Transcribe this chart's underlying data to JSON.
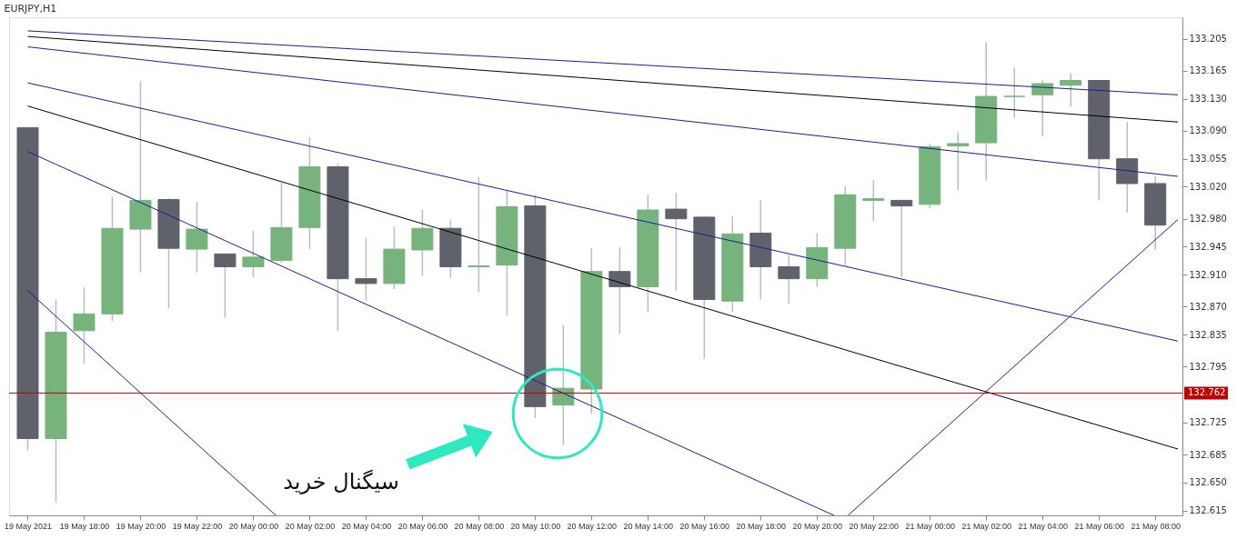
{
  "chart_data": {
    "type": "candlestick",
    "title": "EURJPY,H1",
    "x": [
      "2021-05-19T16:00",
      "2021-05-19T17:00",
      "2021-05-19T18:00",
      "2021-05-19T19:00",
      "2021-05-19T20:00",
      "2021-05-19T21:00",
      "2021-05-19T22:00",
      "2021-05-19T23:00",
      "2021-05-20T00:00",
      "2021-05-20T01:00",
      "2021-05-20T02:00",
      "2021-05-20T03:00",
      "2021-05-20T04:00",
      "2021-05-20T05:00",
      "2021-05-20T06:00",
      "2021-05-20T07:00",
      "2021-05-20T08:00",
      "2021-05-20T09:00",
      "2021-05-20T10:00",
      "2021-05-20T11:00",
      "2021-05-20T12:00",
      "2021-05-20T13:00",
      "2021-05-20T14:00",
      "2021-05-20T15:00",
      "2021-05-20T16:00",
      "2021-05-20T17:00",
      "2021-05-20T18:00",
      "2021-05-20T19:00",
      "2021-05-20T20:00",
      "2021-05-20T21:00",
      "2021-05-20T22:00",
      "2021-05-20T23:00",
      "2021-05-21T00:00",
      "2021-05-21T01:00",
      "2021-05-21T02:00",
      "2021-05-21T03:00",
      "2021-05-21T04:00",
      "2021-05-21T05:00",
      "2021-05-21T06:00",
      "2021-05-21T07:00",
      "2021-05-21T08:00"
    ],
    "ohlc": [
      [
        133.094,
        133.094,
        132.69,
        132.705
      ],
      [
        132.705,
        132.879,
        132.625,
        132.838
      ],
      [
        132.84,
        132.894,
        132.799,
        132.861
      ],
      [
        132.861,
        133.008,
        132.852,
        132.968
      ],
      [
        132.967,
        133.152,
        132.913,
        133.003
      ],
      [
        133.004,
        133.006,
        132.868,
        132.943
      ],
      [
        132.942,
        133.001,
        132.913,
        132.967
      ],
      [
        132.936,
        132.936,
        132.856,
        132.92
      ],
      [
        132.92,
        132.965,
        132.907,
        132.932
      ],
      [
        132.928,
        133.025,
        132.925,
        132.969
      ],
      [
        132.969,
        133.082,
        132.942,
        133.045
      ],
      [
        133.045,
        133.049,
        132.84,
        132.905
      ],
      [
        132.905,
        132.956,
        132.878,
        132.899
      ],
      [
        132.899,
        132.97,
        132.892,
        132.942
      ],
      [
        132.941,
        132.991,
        132.909,
        132.968
      ],
      [
        132.968,
        132.979,
        132.906,
        132.92
      ],
      [
        132.92,
        133.032,
        132.888,
        132.921
      ],
      [
        132.922,
        133.015,
        132.859,
        132.995
      ],
      [
        132.996,
        133.01,
        132.731,
        132.745
      ],
      [
        132.747,
        132.847,
        132.697,
        132.768
      ],
      [
        132.767,
        132.943,
        132.736,
        132.914
      ],
      [
        132.914,
        132.944,
        132.836,
        132.895
      ],
      [
        132.895,
        133.01,
        132.863,
        132.991
      ],
      [
        132.992,
        133.012,
        132.89,
        132.98
      ],
      [
        132.982,
        132.984,
        132.805,
        132.879
      ],
      [
        132.877,
        132.983,
        132.863,
        132.961
      ],
      [
        132.962,
        133.003,
        132.879,
        132.92
      ],
      [
        132.92,
        132.935,
        132.874,
        132.905
      ],
      [
        132.905,
        132.962,
        132.895,
        132.944
      ],
      [
        132.943,
        133.021,
        132.922,
        133.01
      ],
      [
        133.003,
        133.028,
        132.977,
        133.005
      ],
      [
        133.003,
        133.003,
        132.907,
        132.996
      ],
      [
        132.998,
        133.074,
        132.993,
        133.07
      ],
      [
        133.071,
        133.088,
        133.016,
        133.074
      ],
      [
        133.075,
        133.201,
        133.028,
        133.133
      ],
      [
        133.133,
        133.169,
        133.106,
        133.133
      ],
      [
        133.135,
        133.153,
        133.083,
        133.149
      ],
      [
        133.147,
        133.162,
        133.12,
        133.153
      ],
      [
        133.153,
        133.153,
        133.003,
        133.055
      ],
      [
        133.055,
        133.101,
        132.988,
        133.024
      ],
      [
        133.024,
        133.033,
        132.941,
        132.972
      ]
    ],
    "colors": [
      "#5f616b",
      "#77b37d",
      "#77b37d",
      "#77b37d",
      "#77b37d",
      "#5f616b",
      "#77b37d",
      "#5f616b",
      "#77b37d",
      "#77b37d",
      "#77b37d",
      "#5f616b",
      "#5f616b",
      "#77b37d",
      "#77b37d",
      "#5f616b",
      "#77b37d",
      "#77b37d",
      "#5f616b",
      "#77b37d",
      "#77b37d",
      "#5f616b",
      "#77b37d",
      "#5f616b",
      "#5f616b",
      "#77b37d",
      "#5f616b",
      "#5f616b",
      "#77b37d",
      "#77b37d",
      "#77b37d",
      "#5f616b",
      "#77b37d",
      "#77b37d",
      "#77b37d",
      "#77b37d",
      "#77b37d",
      "#77b37d",
      "#5f616b",
      "#5f616b",
      "#5f616b"
    ],
    "series": [
      {
        "type": "line",
        "color": "#1c1c9a",
        "x": [
          "2021-05-19T16:00",
          "2021-05-21T08:48"
        ],
        "values": [
          133.215,
          133.135
        ]
      },
      {
        "type": "line",
        "color": "#000000",
        "x": [
          "2021-05-19T16:00",
          "2021-05-21T08:48"
        ],
        "values": [
          133.208,
          133.101
        ]
      },
      {
        "type": "line",
        "color": "#1c1c9a",
        "x": [
          "2021-05-19T16:00",
          "2021-05-21T08:48"
        ],
        "values": [
          133.195,
          133.033
        ]
      },
      {
        "type": "line",
        "color": "#1c1c9a",
        "x": [
          "2021-05-19T16:00",
          "2021-05-21T08:48"
        ],
        "values": [
          133.15,
          132.827
        ]
      },
      {
        "type": "line",
        "color": "#000000",
        "x": [
          "2021-05-19T16:00",
          "2021-05-21T08:48"
        ],
        "values": [
          133.121,
          132.692
        ]
      },
      {
        "type": "line",
        "color": "#1c1c9a",
        "x": [
          "2021-05-19T16:00",
          "2021-05-20T20:36"
        ],
        "values": [
          133.064,
          132.609
        ]
      },
      {
        "type": "line",
        "color": "#1c1c9a",
        "x": [
          "2021-05-19T16:00",
          "2021-05-20T00:48"
        ],
        "values": [
          132.89,
          132.609
        ]
      },
      {
        "type": "line",
        "color": "#1c1c9a",
        "x": [
          "2021-05-20T21:06",
          "2021-05-21T08:48"
        ],
        "values": [
          132.609,
          132.979
        ]
      }
    ],
    "ref_lines": [
      {
        "axis": "y",
        "value": 132.762,
        "label": "132.762",
        "color": "#c00000"
      }
    ],
    "annotations": [
      "سیگنال خرید"
    ],
    "xlim": [
      "2021-05-19T15:30",
      "2021-05-21T08:48"
    ],
    "ylim": [
      132.609,
      133.232
    ],
    "xticks": [
      {
        "value": "2021-05-19T16:00",
        "label": "19 May 2021"
      },
      {
        "value": "2021-05-19T18:00",
        "label": "19 May 18:00"
      },
      {
        "value": "2021-05-19T20:00",
        "label": "19 May 20:00"
      },
      {
        "value": "2021-05-19T22:00",
        "label": "19 May 22:00"
      },
      {
        "value": "2021-05-20T00:00",
        "label": "20 May 00:00"
      },
      {
        "value": "2021-05-20T02:00",
        "label": "20 May 02:00"
      },
      {
        "value": "2021-05-20T04:00",
        "label": "20 May 04:00"
      },
      {
        "value": "2021-05-20T06:00",
        "label": "20 May 06:00"
      },
      {
        "value": "2021-05-20T08:00",
        "label": "20 May 08:00"
      },
      {
        "value": "2021-05-20T10:00",
        "label": "20 May 10:00"
      },
      {
        "value": "2021-05-20T12:00",
        "label": "20 May 12:00"
      },
      {
        "value": "2021-05-20T14:00",
        "label": "20 May 14:00"
      },
      {
        "value": "2021-05-20T16:00",
        "label": "20 May 16:00"
      },
      {
        "value": "2021-05-20T18:00",
        "label": "20 May 18:00"
      },
      {
        "value": "2021-05-20T20:00",
        "label": "20 May 20:00"
      },
      {
        "value": "2021-05-20T22:00",
        "label": "20 May 22:00"
      },
      {
        "value": "2021-05-21T00:00",
        "label": "21 May 00:00"
      },
      {
        "value": "2021-05-21T02:00",
        "label": "21 May 02:00"
      },
      {
        "value": "2021-05-21T04:00",
        "label": "21 May 04:00"
      },
      {
        "value": "2021-05-21T06:00",
        "label": "21 May 06:00"
      },
      {
        "value": "2021-05-21T08:00",
        "label": "21 May 08:00"
      }
    ],
    "yticks": [
      133.205,
      133.165,
      {
        "value": 133.13,
        "label": "133.130"
      },
      {
        "value": 133.09,
        "label": "133.090"
      },
      133.055,
      {
        "value": 133.02,
        "label": "133.020"
      },
      {
        "value": 132.98,
        "label": "132.980"
      },
      132.945,
      {
        "value": 132.91,
        "label": "132.910"
      },
      {
        "value": 132.87,
        "label": "132.870"
      },
      132.835,
      132.795,
      132.725,
      132.685,
      {
        "value": 132.65,
        "label": "132.650"
      },
      132.615
    ],
    "grid": false
  }
}
